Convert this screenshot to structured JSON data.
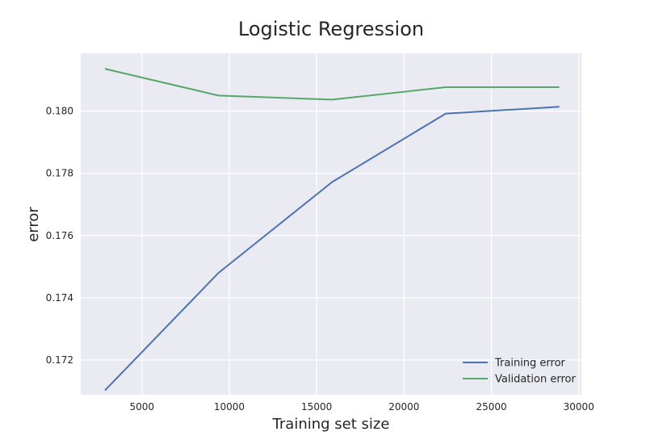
{
  "chart_data": {
    "type": "line",
    "title": "Logistic Regression",
    "xlabel": "Training set size",
    "ylabel": "error",
    "xlim": [
      1500,
      30150
    ],
    "ylim": [
      0.17088,
      0.18186
    ],
    "x_ticks": [
      5000,
      10000,
      15000,
      20000,
      25000,
      30000
    ],
    "y_ticks": [
      0.172,
      0.174,
      0.176,
      0.178,
      0.18
    ],
    "y_tick_labels": [
      "0.172",
      "0.174",
      "0.176",
      "0.178",
      "0.180"
    ],
    "x_tick_labels": [
      "5000",
      "10000",
      "15000",
      "20000",
      "25000",
      "30000"
    ],
    "x": [
      2885,
      9385,
      15885,
      22385,
      28885
    ],
    "series": [
      {
        "name": "Training error",
        "color": "#4c72b0",
        "values": [
          0.17102,
          0.1748,
          0.17772,
          0.17992,
          0.18014
        ]
      },
      {
        "name": "Validation error",
        "color": "#55a868",
        "values": [
          0.18136,
          0.1805,
          0.18037,
          0.18077,
          0.18077
        ]
      }
    ],
    "grid": true,
    "legend_position": "bottom-right",
    "background_color": "#eaeaf2",
    "grid_color": "#ffffff"
  }
}
